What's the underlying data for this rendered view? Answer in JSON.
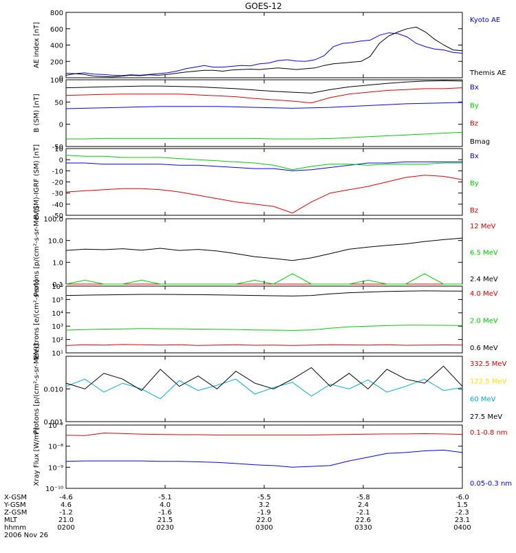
{
  "title": "GOES-12",
  "colors": {
    "black": "#000000",
    "blue": "#0000ff",
    "red": "#dd0000",
    "green": "#00cc00",
    "cyan": "#00aadd",
    "yellow": "#ffdd00"
  },
  "chart_data": [
    {
      "type": "line",
      "id": "ae",
      "ylabel": "AE index [nT]",
      "ylim": [
        0,
        800
      ],
      "yscale": "linear",
      "yticks": [
        "800",
        "600",
        "400",
        "200",
        "0"
      ],
      "legend": [
        "Kyoto AE",
        "Themis AE"
      ],
      "series": [
        {
          "name": "Kyoto AE",
          "color": "blue",
          "values": [
            55,
            50,
            60,
            45,
            40,
            30,
            25,
            35,
            30,
            40,
            50,
            60,
            80,
            110,
            130,
            150,
            130,
            130,
            140,
            150,
            145,
            170,
            180,
            210,
            220,
            205,
            200,
            220,
            270,
            380,
            420,
            430,
            450,
            460,
            520,
            550,
            540,
            500,
            420,
            380,
            350,
            340,
            310,
            300
          ]
        },
        {
          "name": "Themis AE",
          "color": "black",
          "values": [
            30,
            50,
            40,
            20,
            15,
            10,
            20,
            30,
            25,
            35,
            30,
            40,
            55,
            70,
            80,
            90,
            90,
            80,
            95,
            100,
            105,
            100,
            110,
            120,
            110,
            100,
            110,
            120,
            150,
            170,
            180,
            190,
            200,
            260,
            420,
            510,
            560,
            600,
            620,
            560,
            470,
            400,
            340,
            330
          ]
        }
      ]
    },
    {
      "type": "line",
      "id": "b-sm",
      "ylabel": "B (SM) [nT]",
      "ylim": [
        -50,
        100
      ],
      "yscale": "linear",
      "yticks": [
        "100",
        "50",
        "0",
        "-50"
      ],
      "legend": [
        "Bx",
        "By",
        "Bz",
        "Bmag"
      ],
      "series": [
        {
          "name": "Bx",
          "color": "blue",
          "values": [
            35,
            36,
            37,
            38,
            39,
            40,
            40,
            40,
            40,
            39,
            38,
            37,
            36,
            37,
            38,
            40,
            42,
            44,
            46,
            47,
            48,
            49
          ]
        },
        {
          "name": "By",
          "color": "green",
          "values": [
            -33,
            -33,
            -32,
            -32,
            -32,
            -32,
            -32,
            -32,
            -32,
            -32,
            -32,
            -33,
            -33,
            -33,
            -32,
            -30,
            -28,
            -26,
            -24,
            -22,
            -20,
            -18
          ]
        },
        {
          "name": "Bz",
          "color": "red",
          "values": [
            65,
            66,
            67,
            68,
            68,
            68,
            68,
            66,
            64,
            62,
            58,
            55,
            52,
            48,
            60,
            68,
            72,
            76,
            78,
            80,
            80,
            82
          ]
        },
        {
          "name": "Bmag",
          "color": "black",
          "values": [
            82,
            83,
            84,
            85,
            86,
            86,
            85,
            84,
            82,
            80,
            77,
            74,
            72,
            70,
            78,
            84,
            88,
            92,
            95,
            97,
            98,
            97
          ]
        }
      ]
    },
    {
      "type": "line",
      "id": "b-minus-igrf",
      "ylabel": "B (SM)-IGRF (SM) [nT]",
      "ylim": [
        -50,
        10
      ],
      "yscale": "linear",
      "yticks": [
        "10",
        "0",
        "-10",
        "-20",
        "-30",
        "-40",
        "-50"
      ],
      "legend": [
        "Bx",
        "By",
        "Bz"
      ],
      "series": [
        {
          "name": "Bx",
          "color": "blue",
          "values": [
            -3,
            -3,
            -4,
            -4,
            -4,
            -4,
            -5,
            -5,
            -6,
            -7,
            -8,
            -8,
            -10,
            -9,
            -7,
            -5,
            -3,
            -3,
            -2,
            -2,
            -2,
            -2
          ]
        },
        {
          "name": "By",
          "color": "green",
          "values": [
            4,
            3,
            3,
            2,
            2,
            2,
            1,
            0,
            -1,
            -2,
            -3,
            -5,
            -9,
            -6,
            -4,
            -4,
            -5,
            -4,
            -4,
            -4,
            -3,
            -3
          ]
        },
        {
          "name": "Bz",
          "color": "red",
          "values": [
            -29,
            -28,
            -27,
            -26,
            -26,
            -27,
            -29,
            -32,
            -35,
            -38,
            -40,
            -42,
            -48,
            -38,
            -30,
            -27,
            -24,
            -20,
            -16,
            -14,
            -15,
            -18
          ]
        }
      ]
    },
    {
      "type": "line",
      "id": "protons-low",
      "ylabel": "Protons [p/(cm²-s-sr-MeV)]",
      "ylim": [
        0.1,
        100
      ],
      "yscale": "log",
      "yticks": [
        "100.0",
        "10.0",
        "1.0",
        "0.1"
      ],
      "legend": [
        "12 MeV",
        "6.5 MeV",
        "2.4 MeV"
      ],
      "series": [
        {
          "name": "12 MeV",
          "color": "red",
          "values": [
            0.1,
            0.1,
            0.1,
            0.1,
            0.1,
            0.1,
            0.1,
            0.1,
            0.1,
            0.1,
            0.1,
            0.1,
            0.1,
            0.1,
            0.1,
            0.1,
            0.1,
            0.1,
            0.1,
            0.1,
            0.1,
            0.1
          ]
        },
        {
          "name": "6.5 MeV",
          "color": "green",
          "values": [
            0.1,
            0.15,
            0.1,
            0.1,
            0.15,
            0.1,
            0.1,
            0.1,
            0.1,
            0.1,
            0.15,
            0.1,
            0.3,
            0.1,
            0.1,
            0.1,
            0.15,
            0.1,
            0.1,
            0.3,
            0.1,
            0.1
          ]
        },
        {
          "name": "2.4 MeV",
          "color": "black",
          "values": [
            3.5,
            4,
            3.8,
            4.2,
            3.6,
            4.4,
            3.5,
            3.9,
            3.3,
            2.5,
            1.8,
            1.5,
            1.2,
            1.6,
            2.5,
            4,
            5,
            6,
            7,
            9,
            11,
            13
          ]
        }
      ]
    },
    {
      "type": "line",
      "id": "electrons",
      "ylabel": "Electrons [e/(cm²-s-sr)]",
      "ylim": [
        10,
        1000000
      ],
      "yscale": "log",
      "yticks": [
        "10⁶",
        "10⁵",
        "10⁴",
        "10³",
        "10²",
        "10¹"
      ],
      "legend": [
        "4.0 MeV",
        "2.0 MeV",
        "0.6 MeV"
      ],
      "series": [
        {
          "name": "4.0 MeV",
          "color": "red",
          "values": [
            35,
            40,
            38,
            42,
            40,
            38,
            40,
            36,
            38,
            40,
            37,
            38,
            36,
            38,
            40,
            39,
            38,
            40,
            37,
            38,
            39,
            38
          ]
        },
        {
          "name": "2.0 MeV",
          "color": "green",
          "values": [
            500,
            550,
            600,
            620,
            650,
            640,
            630,
            600,
            580,
            560,
            520,
            500,
            480,
            520,
            700,
            900,
            1000,
            1100,
            1200,
            1200,
            1150,
            1100
          ]
        },
        {
          "name": "0.6 MeV",
          "color": "black",
          "values": [
            200000,
            210000,
            220000,
            230000,
            240000,
            240000,
            235000,
            230000,
            220000,
            210000,
            200000,
            190000,
            180000,
            200000,
            260000,
            320000,
            360000,
            400000,
            420000,
            440000,
            430000,
            420000
          ]
        }
      ]
    },
    {
      "type": "line",
      "id": "protons-high",
      "ylabel": "Protons [p/(cm²-s-sr-MeV)]",
      "ylim": [
        0.001,
        0.1
      ],
      "yscale": "log",
      "yticks": [
        "0.010",
        "0.001"
      ],
      "legend": [
        "332.5 MeV",
        "122.5 MeV",
        "60 MeV",
        "27.5 MeV"
      ],
      "series": [
        {
          "name": "60 MeV",
          "color": "cyan",
          "values": [
            0.012,
            0.02,
            0.008,
            0.015,
            0.01,
            0.005,
            0.018,
            0.009,
            0.013,
            0.02,
            0.007,
            0.011,
            0.016,
            0.006,
            0.014,
            0.01,
            0.019,
            0.008,
            0.012,
            0.02,
            0.009,
            0.011
          ]
        },
        {
          "name": "27.5 MeV",
          "color": "black",
          "values": [
            0.015,
            0.01,
            0.03,
            0.02,
            0.009,
            0.04,
            0.012,
            0.025,
            0.01,
            0.035,
            0.015,
            0.01,
            0.02,
            0.045,
            0.012,
            0.03,
            0.01,
            0.04,
            0.02,
            0.015,
            0.05,
            0.012
          ]
        }
      ]
    },
    {
      "type": "line",
      "id": "xray",
      "ylabel": "Xray Flux [W/m²]",
      "ylim": [
        1e-10,
        1e-07
      ],
      "yscale": "log",
      "yticks": [
        "10⁻⁷",
        "10⁻⁸",
        "10⁻⁹",
        "10⁻¹⁰"
      ],
      "legend": [
        "0.1-0.8 nm",
        "0.05-0.3 nm"
      ],
      "series": [
        {
          "name": "0.1-0.8 nm",
          "color": "red",
          "values": [
            3.3e-08,
            3.2e-08,
            4.2e-08,
            4e-08,
            3.7e-08,
            3.6e-08,
            3.5e-08,
            3.5e-08,
            3.4e-08,
            3.4e-08,
            3.4e-08,
            3.4e-08,
            3.4e-08,
            3.4e-08,
            3.5e-08,
            3.6e-08,
            3.7e-08,
            3.8e-08,
            3.8e-08,
            3.9e-08,
            3.8e-08,
            3.6e-08
          ]
        },
        {
          "name": "0.05-0.3 nm",
          "color": "blue",
          "values": [
            1.9e-09,
            2e-09,
            2e-09,
            2e-09,
            2e-09,
            1.9e-09,
            1.9e-09,
            1.8e-09,
            1.7e-09,
            1.5e-09,
            1.3e-09,
            1.2e-09,
            1e-09,
            1.1e-09,
            1.2e-09,
            2e-09,
            3e-09,
            4.5e-09,
            5e-09,
            6e-09,
            6.5e-09,
            5e-09
          ]
        }
      ]
    }
  ],
  "ephemeris": {
    "row_labels": [
      "X-GSM",
      "Y-GSM",
      "Z-GSM",
      "MLT",
      "hhmm"
    ],
    "columns": [
      [
        "-4.6",
        "4.6",
        "-1.2",
        "21.0",
        "0200"
      ],
      [
        "-5.1",
        "4.0",
        "-1.6",
        "21.5",
        "0230"
      ],
      [
        "-5.5",
        "3.2",
        "-1.9",
        "22.0",
        "0300"
      ],
      [
        "-5.8",
        "2.4",
        "-2.1",
        "22.6",
        "0330"
      ],
      [
        "-6.0",
        "1.5",
        "-2.3",
        "23.1",
        "0400"
      ]
    ],
    "date": "2006 Nov 26"
  }
}
